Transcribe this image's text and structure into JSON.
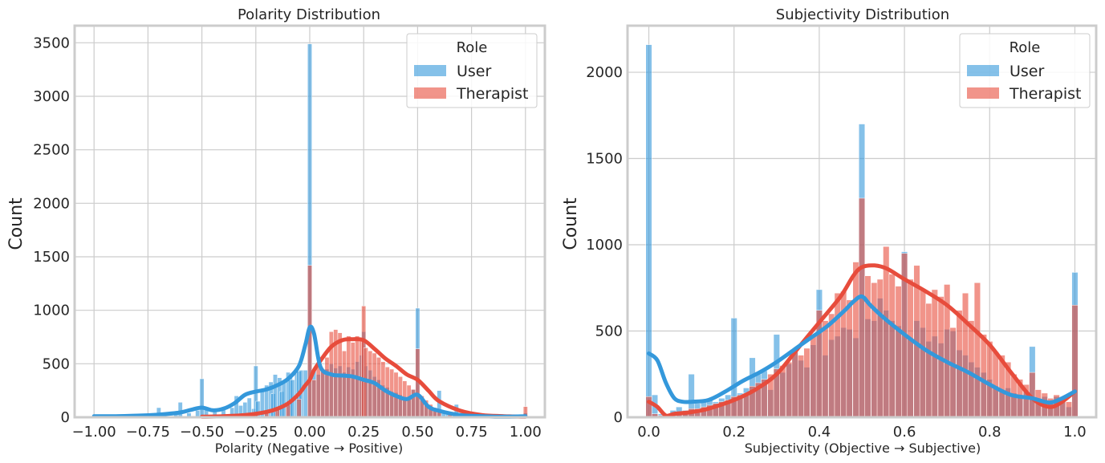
{
  "colors": {
    "user": "#3498db",
    "therapist": "#e74c3c",
    "grid": "#cccccc",
    "frame": "#cccccc"
  },
  "chart_data": [
    {
      "type": "histogram",
      "title": "Polarity Distribution",
      "xlabel": "Polarity (Negative → Positive)",
      "ylabel": "Count",
      "xlim": [
        -1.09,
        1.09
      ],
      "ylim": [
        0,
        3660
      ],
      "xticks": [
        -1.0,
        -0.75,
        -0.5,
        -0.25,
        0.0,
        0.25,
        0.5,
        0.75,
        1.0
      ],
      "xtick_labels": [
        "−1.00",
        "−0.75",
        "−0.50",
        "−0.25",
        "0.00",
        "0.25",
        "0.50",
        "0.75",
        "1.00"
      ],
      "yticks": [
        0,
        500,
        1000,
        1500,
        2000,
        2500,
        3000,
        3500
      ],
      "ytick_labels": [
        "0",
        "500",
        "1000",
        "1500",
        "2000",
        "2500",
        "3000",
        "3500"
      ],
      "bin_width": 0.02,
      "legend": {
        "title": "Role",
        "position": "top-right",
        "entries": [
          "User",
          "Therapist"
        ]
      },
      "series": [
        {
          "name": "User",
          "bins_x": [
            -1.0,
            -0.9,
            -0.8,
            -0.72,
            -0.7,
            -0.68,
            -0.62,
            -0.6,
            -0.56,
            -0.52,
            -0.5,
            -0.48,
            -0.44,
            -0.4,
            -0.36,
            -0.34,
            -0.32,
            -0.3,
            -0.28,
            -0.26,
            -0.25,
            -0.24,
            -0.22,
            -0.2,
            -0.18,
            -0.17,
            -0.16,
            -0.14,
            -0.13,
            -0.12,
            -0.1,
            -0.09,
            -0.08,
            -0.06,
            -0.05,
            -0.04,
            -0.02,
            0.0,
            0.02,
            0.04,
            0.06,
            0.08,
            0.1,
            0.12,
            0.14,
            0.16,
            0.18,
            0.2,
            0.22,
            0.24,
            0.25,
            0.26,
            0.28,
            0.3,
            0.32,
            0.34,
            0.36,
            0.38,
            0.4,
            0.42,
            0.44,
            0.46,
            0.48,
            0.5,
            0.52,
            0.54,
            0.56,
            0.58,
            0.6,
            0.62,
            0.64,
            0.66,
            0.68,
            0.7,
            0.74,
            0.78,
            0.8,
            0.85,
            0.9,
            0.95,
            1.0
          ],
          "bins_y": [
            10,
            8,
            15,
            20,
            90,
            35,
            45,
            140,
            40,
            65,
            360,
            80,
            55,
            75,
            90,
            200,
            110,
            140,
            180,
            80,
            480,
            150,
            250,
            300,
            330,
            220,
            400,
            370,
            240,
            340,
            420,
            380,
            350,
            460,
            430,
            440,
            440,
            3490,
            450,
            400,
            430,
            450,
            500,
            460,
            480,
            420,
            470,
            450,
            520,
            580,
            800,
            480,
            440,
            380,
            350,
            300,
            280,
            240,
            230,
            210,
            180,
            170,
            260,
            1020,
            160,
            110,
            80,
            90,
            250,
            55,
            45,
            35,
            120,
            25,
            20,
            15,
            30,
            10,
            8,
            5,
            40
          ]
        },
        {
          "name": "Therapist",
          "bins_x": [
            -0.5,
            -0.4,
            -0.3,
            -0.25,
            -0.2,
            -0.15,
            -0.1,
            -0.05,
            0.0,
            0.02,
            0.04,
            0.06,
            0.08,
            0.1,
            0.12,
            0.14,
            0.16,
            0.18,
            0.2,
            0.22,
            0.24,
            0.25,
            0.26,
            0.28,
            0.3,
            0.32,
            0.34,
            0.36,
            0.38,
            0.4,
            0.42,
            0.44,
            0.46,
            0.48,
            0.5,
            0.52,
            0.54,
            0.56,
            0.58,
            0.6,
            0.65,
            0.7,
            0.8,
            0.9,
            1.0
          ],
          "bins_y": [
            5,
            10,
            20,
            40,
            50,
            80,
            120,
            170,
            1420,
            350,
            500,
            450,
            560,
            800,
            820,
            790,
            620,
            760,
            700,
            760,
            720,
            1040,
            650,
            620,
            600,
            560,
            520,
            470,
            450,
            420,
            380,
            340,
            300,
            260,
            640,
            200,
            160,
            120,
            90,
            70,
            45,
            30,
            20,
            10,
            100
          ]
        }
      ],
      "kde": [
        {
          "name": "User",
          "x": [
            -1.0,
            -0.9,
            -0.8,
            -0.7,
            -0.6,
            -0.55,
            -0.5,
            -0.45,
            -0.4,
            -0.35,
            -0.3,
            -0.25,
            -0.2,
            -0.15,
            -0.1,
            -0.05,
            -0.02,
            0.0,
            0.02,
            0.05,
            0.1,
            0.15,
            0.2,
            0.25,
            0.3,
            0.35,
            0.4,
            0.45,
            0.5,
            0.55,
            0.6,
            0.7,
            0.8,
            0.9,
            1.0
          ],
          "y": [
            10,
            10,
            15,
            25,
            45,
            70,
            90,
            65,
            80,
            130,
            210,
            240,
            260,
            300,
            360,
            480,
            680,
            840,
            780,
            470,
            400,
            390,
            380,
            350,
            320,
            250,
            200,
            170,
            210,
            100,
            60,
            20,
            10,
            5,
            10
          ]
        },
        {
          "name": "Therapist",
          "x": [
            -0.5,
            -0.4,
            -0.3,
            -0.2,
            -0.15,
            -0.1,
            -0.05,
            -0.02,
            0.0,
            0.02,
            0.05,
            0.1,
            0.15,
            0.2,
            0.25,
            0.3,
            0.35,
            0.4,
            0.45,
            0.5,
            0.55,
            0.6,
            0.7,
            0.8,
            0.9,
            1.0
          ],
          "y": [
            5,
            10,
            20,
            50,
            80,
            130,
            220,
            300,
            350,
            440,
            530,
            660,
            720,
            730,
            720,
            640,
            550,
            480,
            400,
            350,
            250,
            150,
            60,
            20,
            10,
            5
          ]
        }
      ]
    },
    {
      "type": "histogram",
      "title": "Subjectivity Distribution",
      "xlabel": "Subjectivity (Objective → Subjective)",
      "ylabel": "Count",
      "xlim": [
        -0.05,
        1.05
      ],
      "ylim": [
        0,
        2270
      ],
      "xticks": [
        0.0,
        0.2,
        0.4,
        0.6,
        0.8,
        1.0
      ],
      "xtick_labels": [
        "0.0",
        "0.2",
        "0.4",
        "0.6",
        "0.8",
        "1.0"
      ],
      "yticks": [
        0,
        500,
        1000,
        1500,
        2000
      ],
      "ytick_labels": [
        "0",
        "500",
        "1000",
        "1500",
        "2000"
      ],
      "bin_width": 0.0143,
      "legend": {
        "title": "Role",
        "position": "top-right",
        "entries": [
          "User",
          "Therapist"
        ]
      },
      "series": [
        {
          "name": "User",
          "bins_x": [
            0.0,
            0.014,
            0.029,
            0.043,
            0.057,
            0.071,
            0.086,
            0.1,
            0.114,
            0.129,
            0.143,
            0.157,
            0.171,
            0.186,
            0.2,
            0.214,
            0.229,
            0.243,
            0.257,
            0.271,
            0.286,
            0.3,
            0.314,
            0.329,
            0.343,
            0.357,
            0.371,
            0.386,
            0.4,
            0.414,
            0.429,
            0.443,
            0.457,
            0.471,
            0.486,
            0.5,
            0.514,
            0.529,
            0.543,
            0.557,
            0.571,
            0.586,
            0.6,
            0.614,
            0.629,
            0.643,
            0.657,
            0.671,
            0.686,
            0.7,
            0.714,
            0.729,
            0.743,
            0.757,
            0.771,
            0.786,
            0.8,
            0.814,
            0.829,
            0.843,
            0.857,
            0.871,
            0.886,
            0.9,
            0.914,
            0.929,
            0.943,
            0.957,
            0.971,
            0.986,
            1.0
          ],
          "bins_y": [
            2160,
            130,
            20,
            15,
            40,
            60,
            40,
            250,
            80,
            90,
            100,
            90,
            110,
            130,
            575,
            140,
            170,
            345,
            250,
            270,
            160,
            480,
            260,
            310,
            380,
            330,
            290,
            420,
            740,
            360,
            450,
            470,
            520,
            510,
            460,
            1700,
            570,
            560,
            690,
            620,
            560,
            530,
            960,
            450,
            560,
            520,
            440,
            470,
            430,
            510,
            500,
            390,
            360,
            320,
            290,
            260,
            220,
            180,
            160,
            170,
            140,
            120,
            150,
            410,
            110,
            120,
            90,
            120,
            100,
            60,
            840
          ]
        },
        {
          "name": "Therapist",
          "bins_x": [
            0.0,
            0.014,
            0.029,
            0.043,
            0.057,
            0.071,
            0.086,
            0.1,
            0.114,
            0.129,
            0.143,
            0.157,
            0.171,
            0.186,
            0.2,
            0.214,
            0.229,
            0.243,
            0.257,
            0.271,
            0.286,
            0.3,
            0.314,
            0.329,
            0.343,
            0.357,
            0.371,
            0.386,
            0.4,
            0.414,
            0.429,
            0.443,
            0.457,
            0.471,
            0.486,
            0.5,
            0.514,
            0.529,
            0.543,
            0.557,
            0.571,
            0.586,
            0.6,
            0.614,
            0.629,
            0.643,
            0.657,
            0.671,
            0.686,
            0.7,
            0.714,
            0.729,
            0.743,
            0.757,
            0.771,
            0.786,
            0.8,
            0.814,
            0.829,
            0.843,
            0.857,
            0.871,
            0.886,
            0.9,
            0.914,
            0.929,
            0.943,
            0.957,
            0.971,
            0.986,
            1.0
          ],
          "bins_y": [
            120,
            20,
            10,
            10,
            20,
            30,
            30,
            50,
            50,
            60,
            70,
            80,
            90,
            100,
            120,
            130,
            140,
            180,
            200,
            220,
            250,
            280,
            300,
            320,
            380,
            360,
            400,
            470,
            620,
            560,
            600,
            720,
            730,
            680,
            900,
            1270,
            820,
            780,
            800,
            990,
            830,
            760,
            950,
            800,
            880,
            740,
            660,
            740,
            700,
            770,
            520,
            620,
            720,
            560,
            780,
            480,
            440,
            380,
            360,
            320,
            250,
            220,
            190,
            260,
            160,
            140,
            110,
            130,
            120,
            90,
            650
          ]
        }
      ],
      "kde": [
        {
          "name": "User",
          "x": [
            0.0,
            0.02,
            0.04,
            0.06,
            0.08,
            0.1,
            0.14,
            0.18,
            0.22,
            0.26,
            0.3,
            0.34,
            0.38,
            0.42,
            0.46,
            0.48,
            0.5,
            0.52,
            0.55,
            0.6,
            0.65,
            0.7,
            0.75,
            0.8,
            0.85,
            0.9,
            0.94,
            0.97,
            1.0
          ],
          "y": [
            370,
            330,
            200,
            110,
            90,
            90,
            100,
            150,
            210,
            260,
            320,
            390,
            460,
            530,
            620,
            670,
            700,
            650,
            580,
            480,
            390,
            320,
            260,
            190,
            130,
            110,
            85,
            110,
            150
          ]
        },
        {
          "name": "Therapist",
          "x": [
            0.0,
            0.02,
            0.04,
            0.06,
            0.1,
            0.14,
            0.2,
            0.25,
            0.3,
            0.35,
            0.4,
            0.45,
            0.48,
            0.5,
            0.53,
            0.56,
            0.6,
            0.65,
            0.7,
            0.75,
            0.8,
            0.85,
            0.9,
            0.94,
            0.97,
            1.0
          ],
          "y": [
            90,
            60,
            10,
            20,
            30,
            50,
            100,
            160,
            250,
            400,
            550,
            700,
            820,
            870,
            880,
            860,
            800,
            730,
            650,
            540,
            420,
            260,
            110,
            60,
            90,
            150
          ]
        }
      ]
    }
  ]
}
